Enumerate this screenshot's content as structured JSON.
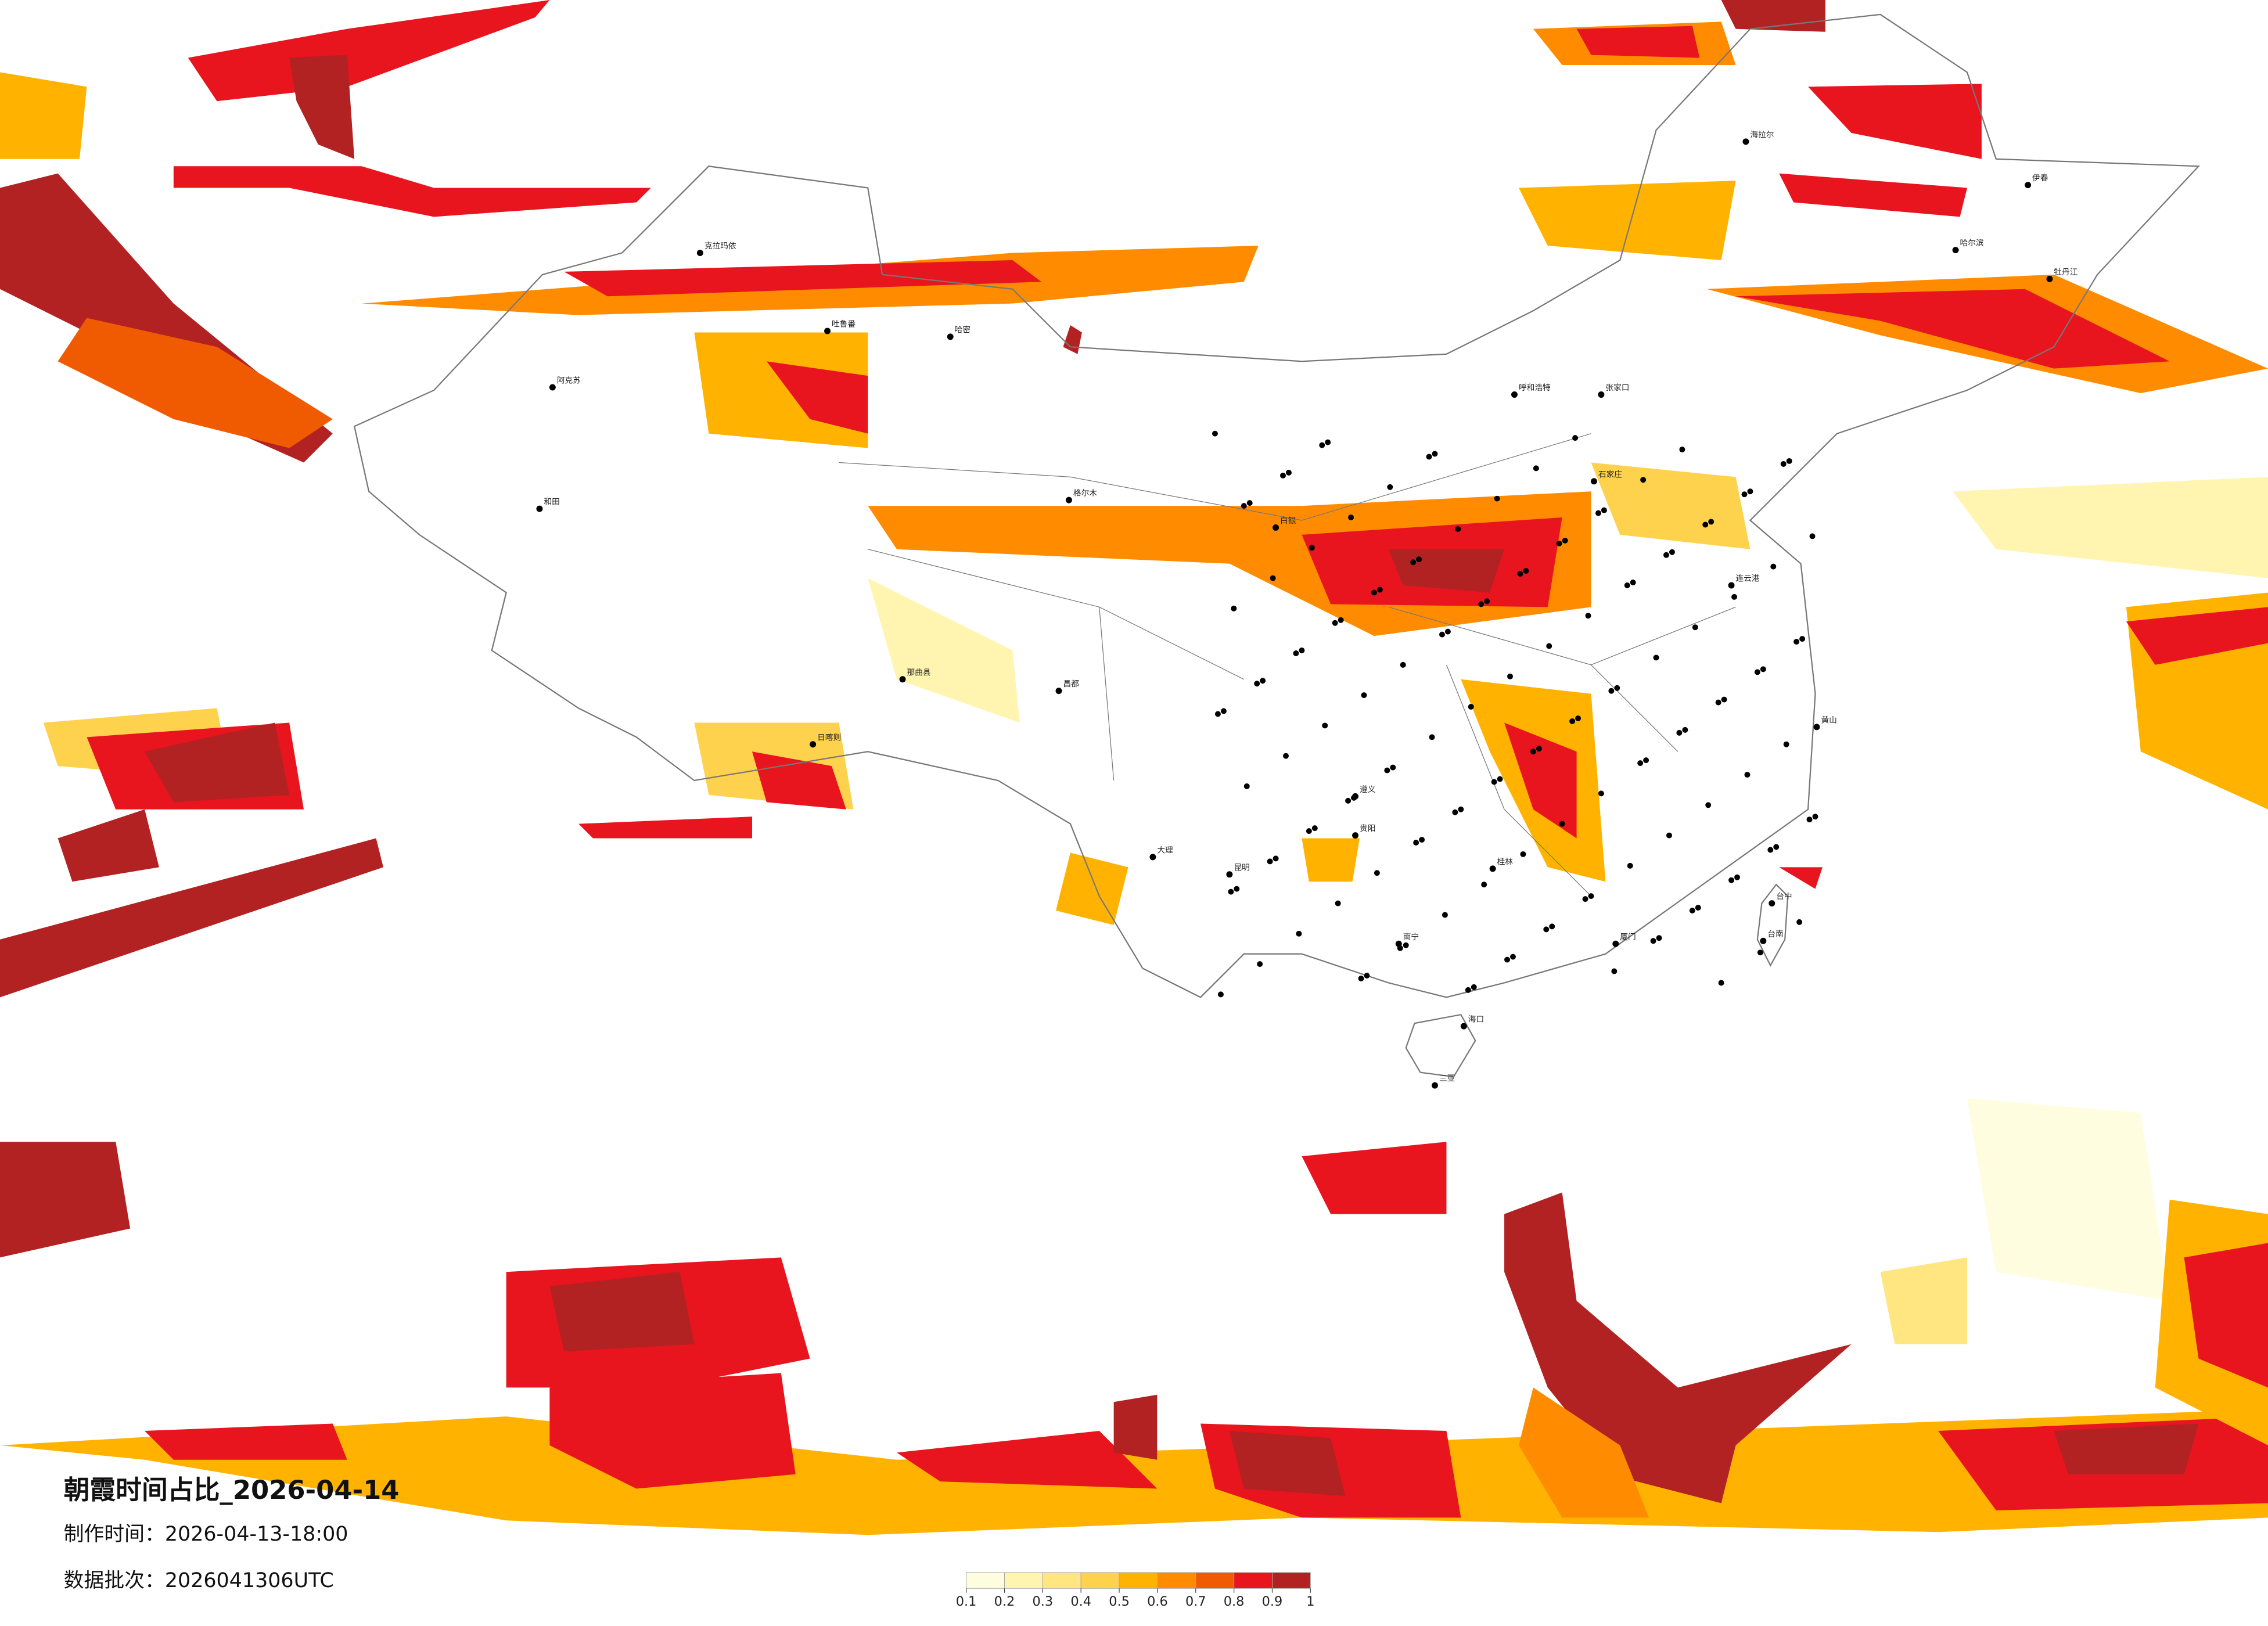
{
  "title": "朝霞时间占比_2026-04-14",
  "production_time": "制作时间：2026-04-13-18:00",
  "data_batch": "数据批次：2026041306UTC",
  "colorbar": {
    "ticks": [
      0.1,
      0.2,
      0.3,
      0.4,
      0.5,
      0.6,
      0.7,
      0.8,
      0.9,
      1
    ],
    "colors": [
      "#fffde0",
      "#fff5b0",
      "#ffe680",
      "#ffd24d",
      "#ffb300",
      "#ff8c00",
      "#f05a00",
      "#e8141e",
      "#b22222"
    ]
  },
  "cities": [
    "海拉尔",
    "克拉玛依",
    "吐鲁番",
    "哈密",
    "阿克苏",
    "和田",
    "格尔木",
    "日喀则",
    "那曲县",
    "昌都",
    "白银",
    "呼和浩特",
    "张家口",
    "石家庄",
    "连云港",
    "黄山",
    "厦门",
    "台中",
    "台南",
    "海口",
    "三亚",
    "昆明",
    "大理",
    "桂林",
    "南宁",
    "贵阳",
    "遵义",
    "牡丹江",
    "伊春",
    "哈尔滨"
  ]
}
